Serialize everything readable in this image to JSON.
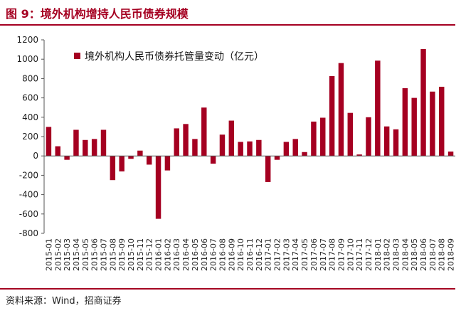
{
  "header": {
    "title": "图 9：境外机构增持人民币债券规模"
  },
  "footer": {
    "source": "资料来源：Wind，招商证券"
  },
  "colors": {
    "accent": "#a50021",
    "bar": "#a50021"
  },
  "chart_data": {
    "type": "bar",
    "title": "",
    "xlabel": "",
    "ylabel": "",
    "ylim": [
      -800,
      1200
    ],
    "yticks": [
      1200,
      1000,
      800,
      600,
      400,
      200,
      0,
      -200,
      -400,
      -600,
      -800
    ],
    "ytick_labels": [
      "1200",
      "1000",
      "800",
      "600",
      "400",
      "200",
      "0",
      "-200",
      "-400",
      "-600",
      "-800"
    ],
    "grid": false,
    "legend_position": "top-left",
    "series": [
      {
        "name": "境外机构人民币债券托管量变动（亿元）",
        "values": [
          300,
          100,
          -40,
          270,
          165,
          175,
          270,
          -250,
          -160,
          -30,
          55,
          -90,
          -650,
          -150,
          285,
          330,
          175,
          500,
          -80,
          220,
          365,
          145,
          150,
          165,
          -270,
          -40,
          145,
          175,
          40,
          355,
          395,
          825,
          960,
          445,
          15,
          400,
          985,
          305,
          275,
          700,
          600,
          1105,
          665,
          715,
          45
        ]
      }
    ],
    "categories": [
      "2015-01",
      "2015-02",
      "2015-03",
      "2015-04",
      "2015-05",
      "2015-06",
      "2015-07",
      "2015-08",
      "2015-09",
      "2015-10",
      "2015-11",
      "2015-12",
      "2016-01",
      "2016-02",
      "2016-03",
      "2016-04",
      "2016-05",
      "2016-06",
      "2016-07",
      "2016-08",
      "2016-09",
      "2016-10",
      "2016-11",
      "2016-12",
      "2017-01",
      "2017-02",
      "2017-03",
      "2017-04",
      "2017-05",
      "2017-06",
      "2017-07",
      "2017-08",
      "2017-09",
      "2017-10",
      "2017-11",
      "2017-12",
      "2018-01",
      "2018-02",
      "2018-03",
      "2018-04",
      "2018-05",
      "2018-06",
      "2018-07",
      "2018-08",
      "2018-09"
    ],
    "x_tick_labels": [
      "2015-01",
      "2015-02",
      "2015-03",
      "2015-04",
      "2015-05",
      "2015-06",
      "2015-07",
      "2015-08",
      "2015-09",
      "2015-10",
      "2015-11",
      "2015-12",
      "2016-01",
      "2016-02",
      "2016-03",
      "2016-04",
      "2016-05",
      "2016-06",
      "2016-07",
      "2016-08",
      "2016-09",
      "2016-10",
      "2016-11",
      "2016-12",
      "2017-01",
      "2017-02",
      "2017-03",
      "2017-04",
      "2017-05",
      "2017-06",
      "2017-07",
      "2017-08",
      "2017-09",
      "2017-10",
      "2017-11",
      "2017-12",
      "2018-01",
      "2018-02",
      "2018-03",
      "2018-04",
      "2018-05",
      "2018-06",
      "2018-07",
      "2018-08",
      "2018-09"
    ]
  }
}
